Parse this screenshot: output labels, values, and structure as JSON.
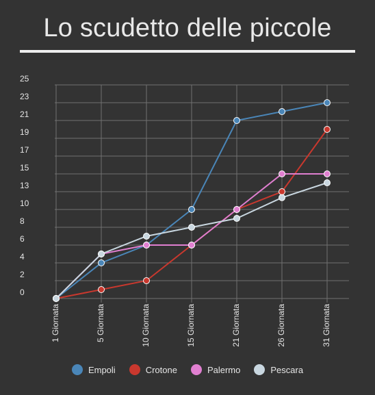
{
  "chart_data": {
    "type": "line",
    "title": "Lo scudetto delle piccole",
    "categories": [
      "1 Giornata",
      "5 Giornata",
      "10 Giornata",
      "15 Giornata",
      "21 Giornata",
      "26 Giornata",
      "31 Giornata"
    ],
    "y_tick_labels": [
      "0",
      "2",
      "4",
      "6",
      "8",
      "10",
      "13",
      "15",
      "17",
      "19",
      "21",
      "23",
      "25"
    ],
    "grid": true,
    "legend_position": "bottom",
    "series": [
      {
        "name": "Empoli",
        "color": "#4a86b8",
        "values": [
          0,
          4,
          6,
          10,
          21,
          22,
          23
        ]
      },
      {
        "name": "Crotone",
        "color": "#c9382e",
        "values": [
          0,
          1,
          2,
          6,
          10,
          13,
          20
        ]
      },
      {
        "name": "Palermo",
        "color": "#e07fd0",
        "values": [
          0,
          5,
          6,
          6,
          10,
          15,
          15
        ]
      },
      {
        "name": "Pescara",
        "color": "#c9d7e0",
        "values": [
          0,
          5,
          7,
          8,
          9,
          12,
          14
        ]
      }
    ]
  }
}
